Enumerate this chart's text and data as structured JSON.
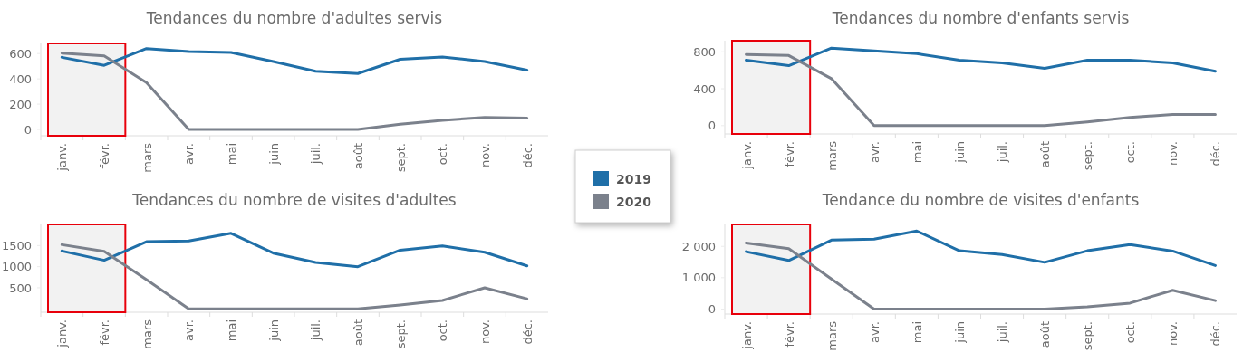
{
  "chart_data": [
    {
      "type": "line",
      "title": "Tendances du nombre d'adultes servis",
      "categories": [
        "janv.",
        "févr.",
        "mars",
        "avr.",
        "mai",
        "juin",
        "juil.",
        "août",
        "sept.",
        "oct.",
        "nov.",
        "déc."
      ],
      "series": [
        {
          "name": "2019",
          "color": "#1f6fa8",
          "values": [
            570,
            507,
            639,
            615,
            609,
            537,
            460,
            442,
            555,
            573,
            537,
            469
          ]
        },
        {
          "name": "2020",
          "color": "#7b818c",
          "values": [
            603,
            582,
            370,
            0,
            0,
            0,
            0,
            0,
            42,
            72,
            95,
            90
          ]
        }
      ],
      "ylim": [
        -50,
        680
      ],
      "yticks": [
        0,
        200,
        400,
        600
      ],
      "legend": "right",
      "bands": [
        {
          "axis": "x",
          "from": "janv.",
          "to": "févr.",
          "color": "#e8000b"
        }
      ]
    },
    {
      "type": "line",
      "title": "Tendances du nombre de visites d'adultes",
      "categories": [
        "janv.",
        "févr.",
        "mars",
        "avr.",
        "mai",
        "juin",
        "juil.",
        "août",
        "sept.",
        "oct.",
        "nov.",
        "déc."
      ],
      "series": [
        {
          "name": "2019",
          "color": "#1f6fa8",
          "values": [
            1370,
            1150,
            1590,
            1610,
            1790,
            1320,
            1100,
            1000,
            1390,
            1490,
            1340,
            1020
          ]
        },
        {
          "name": "2020",
          "color": "#7b818c",
          "values": [
            1520,
            1360,
            690,
            0,
            0,
            0,
            0,
            0,
            90,
            200,
            500,
            240
          ]
        }
      ],
      "ylim": [
        -80,
        2000
      ],
      "yticks": [
        500,
        1000,
        1500
      ],
      "bands": [
        {
          "axis": "x",
          "from": "janv.",
          "to": "févr.",
          "color": "#e8000b"
        }
      ]
    },
    {
      "type": "line",
      "title": "Tendances du nombre d'enfants servis",
      "categories": [
        "janv.",
        "févr.",
        "mars",
        "avr.",
        "mai",
        "juin",
        "juil.",
        "août",
        "sept.",
        "oct.",
        "nov.",
        "déc."
      ],
      "series": [
        {
          "name": "2019",
          "color": "#1f6fa8",
          "values": [
            710,
            650,
            840,
            810,
            780,
            710,
            680,
            620,
            710,
            710,
            680,
            590
          ]
        },
        {
          "name": "2020",
          "color": "#7b818c",
          "values": [
            770,
            760,
            510,
            0,
            0,
            0,
            0,
            0,
            40,
            90,
            120,
            120
          ]
        }
      ],
      "ylim": [
        -90,
        920
      ],
      "yticks": [
        0,
        400,
        800
      ],
      "bands": [
        {
          "axis": "x",
          "from": "janv.",
          "to": "févr.",
          "color": "#e8000b"
        }
      ]
    },
    {
      "type": "line",
      "title": "Tendance du nombre de visites d'enfants",
      "categories": [
        "janv.",
        "févr.",
        "mars",
        "avr.",
        "mai",
        "juin",
        "juil.",
        "août",
        "sept.",
        "oct.",
        "nov.",
        "déc."
      ],
      "series": [
        {
          "name": "2019",
          "color": "#1f6fa8",
          "values": [
            1830,
            1550,
            2200,
            2230,
            2490,
            1860,
            1740,
            1490,
            1860,
            2060,
            1850,
            1390
          ]
        },
        {
          "name": "2020",
          "color": "#7b818c",
          "values": [
            2110,
            1930,
            960,
            0,
            0,
            0,
            0,
            0,
            70,
            190,
            600,
            270
          ]
        }
      ],
      "ylim": [
        -160,
        2700
      ],
      "yticks": [
        0,
        {
          "value": 1000,
          "label": "1 000"
        },
        {
          "value": 2000,
          "label": "2 000"
        }
      ],
      "bands": [
        {
          "axis": "x",
          "from": "janv.",
          "to": "févr.",
          "color": "#e8000b"
        }
      ]
    }
  ]
}
